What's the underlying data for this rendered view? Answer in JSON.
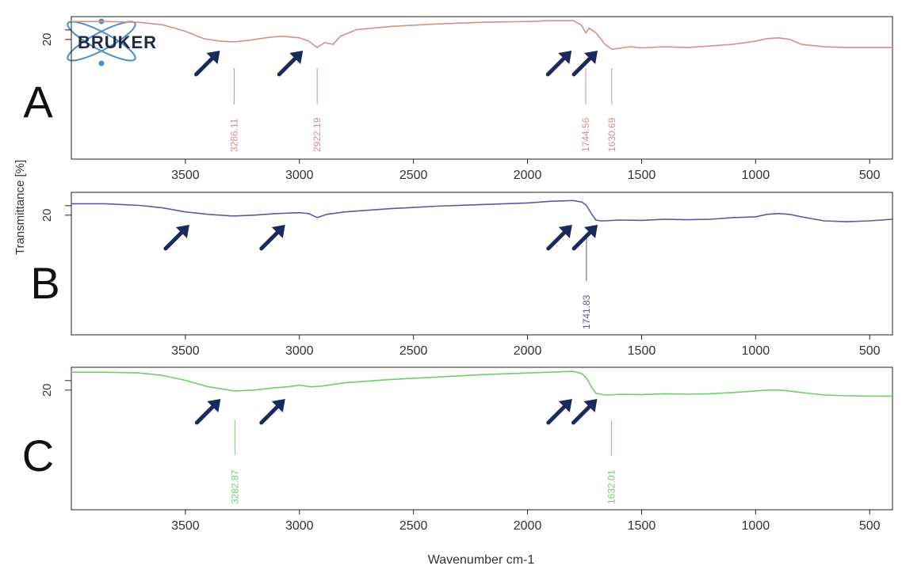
{
  "logo": {
    "text": "BRUKER"
  },
  "ylabel": "Transmittance [%]",
  "xlabel": "Wavenumber cm-1",
  "arrow_color": "#1a2a5c",
  "chart_data": [
    {
      "type": "line",
      "panel_label": "A",
      "color": "#d68f8f",
      "xlim": [
        4000,
        400
      ],
      "x_ticks": [
        3500,
        3000,
        2500,
        2000,
        1500,
        1000,
        500
      ],
      "y_tick_labels": [
        "20"
      ],
      "series": [
        {
          "x": [
            4000,
            3850,
            3700,
            3600,
            3500,
            3420,
            3350,
            3286,
            3220,
            3150,
            3080,
            3000,
            2960,
            2922,
            2890,
            2853,
            2820,
            2750,
            2600,
            2400,
            2200,
            2000,
            1900,
            1800,
            1765,
            1744,
            1730,
            1700,
            1660,
            1630,
            1600,
            1550,
            1500,
            1400,
            1300,
            1200,
            1100,
            1000,
            950,
            900,
            850,
            800,
            700,
            600,
            500,
            400
          ],
          "y": [
            31,
            31,
            30.5,
            29,
            25,
            20.5,
            19,
            18.5,
            19.5,
            21,
            22,
            21,
            19,
            15,
            18,
            17,
            22,
            26,
            28,
            29.5,
            30.5,
            31,
            31.5,
            31.5,
            29,
            24,
            27,
            24,
            17,
            14,
            14.5,
            15.5,
            14.8,
            15.5,
            15,
            16,
            17,
            19,
            20.5,
            21,
            20,
            17,
            15.5,
            15,
            15,
            15
          ]
        }
      ],
      "peak_labels": [
        {
          "x": 3286.11,
          "text": "3286.11"
        },
        {
          "x": 2922.19,
          "text": "2922.19"
        },
        {
          "x": 1744.56,
          "text": "1744.56"
        },
        {
          "x": 1630.69,
          "text": "1630.69"
        }
      ],
      "arrows_at": [
        3286,
        2922,
        1744,
        1630
      ]
    },
    {
      "type": "line",
      "panel_label": "B",
      "color": "#5a5a9e",
      "xlim": [
        4000,
        400
      ],
      "x_ticks": [
        3500,
        3000,
        2500,
        2000,
        1500,
        1000,
        500
      ],
      "y_tick_labels": [
        "20"
      ],
      "series": [
        {
          "x": [
            4000,
            3850,
            3700,
            3600,
            3500,
            3400,
            3290,
            3200,
            3100,
            3000,
            2960,
            2922,
            2880,
            2800,
            2600,
            2400,
            2200,
            2000,
            1900,
            1800,
            1760,
            1742,
            1720,
            1700,
            1680,
            1660,
            1600,
            1500,
            1400,
            1300,
            1200,
            1100,
            1000,
            950,
            900,
            850,
            800,
            700,
            600,
            500,
            400
          ],
          "y": [
            27,
            27,
            26,
            24.5,
            22,
            20.5,
            19.5,
            20,
            21,
            21.5,
            21,
            18.5,
            20.5,
            22,
            24,
            25.5,
            26.5,
            27.5,
            28.5,
            29,
            28,
            26,
            21,
            17,
            16.5,
            16.5,
            17,
            16.8,
            17.5,
            17.2,
            17.5,
            18.5,
            19,
            20.5,
            21,
            20.5,
            19,
            16.5,
            16,
            16.5,
            17.5
          ]
        }
      ],
      "peak_labels": [
        {
          "x": 1741.83,
          "text": "1741.83"
        }
      ],
      "arrows_at": [
        3420,
        3000,
        1742,
        1630
      ]
    },
    {
      "type": "line",
      "panel_label": "C",
      "color": "#6fcf6f",
      "xlim": [
        4000,
        400
      ],
      "x_ticks": [
        3500,
        3000,
        2500,
        2000,
        1500,
        1000,
        500
      ],
      "y_tick_labels": [
        "20"
      ],
      "series": [
        {
          "x": [
            4000,
            3850,
            3700,
            3600,
            3500,
            3400,
            3283,
            3200,
            3100,
            3050,
            3000,
            2950,
            2900,
            2800,
            2600,
            2400,
            2200,
            2000,
            1900,
            1800,
            1760,
            1740,
            1720,
            1700,
            1660,
            1632,
            1600,
            1500,
            1400,
            1300,
            1200,
            1100,
            1000,
            950,
            900,
            850,
            800,
            700,
            600,
            500,
            400
          ],
          "y": [
            31,
            31,
            30.5,
            29,
            26,
            22,
            19.5,
            20,
            21.5,
            22,
            23,
            22,
            22.5,
            24.5,
            26.5,
            28,
            29.5,
            30.5,
            31,
            31.5,
            30,
            27,
            22,
            18,
            17,
            17,
            17.5,
            17.2,
            17.8,
            17.5,
            17.8,
            18.5,
            19.5,
            20,
            20,
            19.5,
            18.5,
            17,
            16.5,
            16.3,
            16.3
          ]
        }
      ],
      "peak_labels": [
        {
          "x": 3282.87,
          "text": "3282.87"
        },
        {
          "x": 1632.01,
          "text": "1632.01"
        }
      ],
      "arrows_at": [
        3283,
        3000,
        1742,
        1632
      ]
    }
  ]
}
